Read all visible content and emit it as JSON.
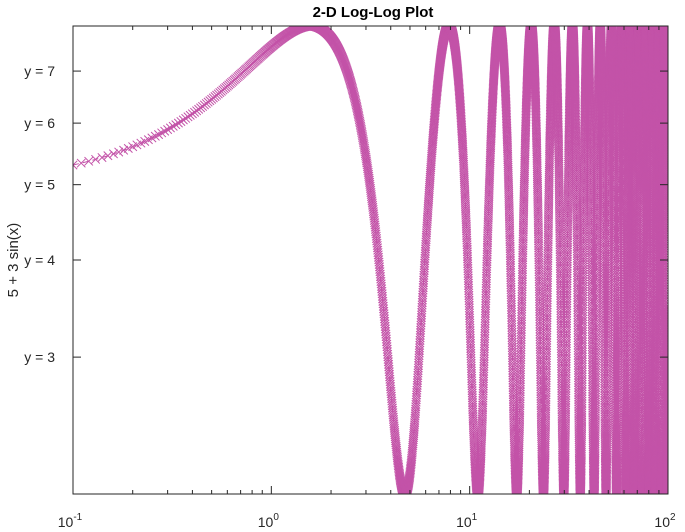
{
  "chart_data": {
    "type": "line",
    "title": "2-D Log-Log Plot",
    "xlabel": "",
    "ylabel": "5 + 3 sin(x)",
    "x_scale": "log",
    "y_scale": "log",
    "xlim": [
      0.1,
      100
    ],
    "ylim": [
      2.0,
      8.0
    ],
    "x_ticks": [
      {
        "value": 0.1,
        "base": "10",
        "exp": "-1"
      },
      {
        "value": 1,
        "base": "10",
        "exp": "0"
      },
      {
        "value": 10,
        "base": "10",
        "exp": "1"
      },
      {
        "value": 100,
        "base": "10",
        "exp": "2"
      }
    ],
    "y_ticks": [
      {
        "value": 3,
        "label": "y = 3"
      },
      {
        "value": 4,
        "label": "y = 4"
      },
      {
        "value": 5,
        "label": "y = 5"
      },
      {
        "value": 6,
        "label": "y = 6"
      },
      {
        "value": 7,
        "label": "y = 7"
      }
    ],
    "series": [
      {
        "function": "5 + 3 sin(x)",
        "x_start": 0.1,
        "x_end": 100,
        "x_step": 0.01,
        "marker": "x",
        "line_style": "dashed",
        "color": "#c353a8"
      }
    ],
    "grid": false,
    "box": true
  }
}
